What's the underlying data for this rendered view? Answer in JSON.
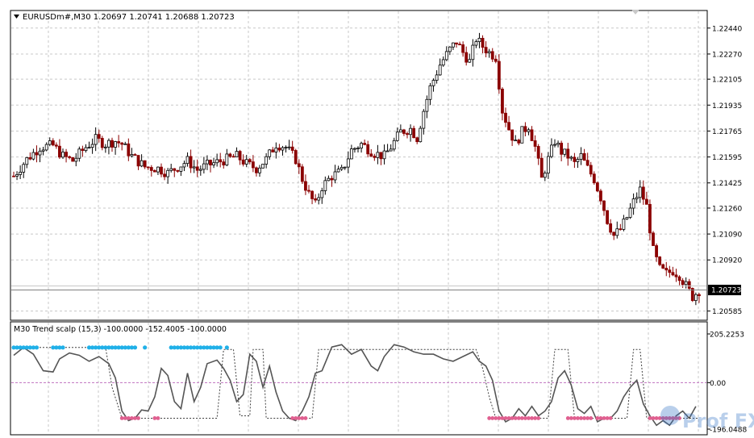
{
  "main_label": "EURUSDm#,M30  1.20697 1.20741 1.20688 1.20723",
  "indicator_label": "M30 Trend scalp (15,3) -100.0000 -152.4005 -100.0000",
  "watermark": "Prof FX",
  "colors": {
    "background": "#ffffff",
    "grid": "#c8c8c8",
    "bull_candle": "#000000",
    "bear_candle": "#8b0000",
    "price_line": "#000000",
    "osc_line": "#555555",
    "signal_line": "#404040",
    "zero_line": "#c070c0",
    "bull_dots": "#20b0e8",
    "bear_dots": "#e06090",
    "current_price_box": "#000000"
  },
  "chart_data": [
    {
      "type": "candlestick",
      "symbol": "EURUSDm#",
      "timeframe": "M30",
      "title": "EURUSDm#,M30  1.20697 1.20741 1.20688 1.20723",
      "ohlc_last": {
        "open": 1.20697,
        "high": 1.20741,
        "low": 1.20688,
        "close": 1.20723
      },
      "current_price": "1.20723",
      "y_ticks": [
        "1.22440",
        "1.22270",
        "1.22105",
        "1.21935",
        "1.21765",
        "1.21595",
        "1.21425",
        "1.21260",
        "1.21090",
        "1.20920",
        "1.20585"
      ],
      "ylim": [
        1.2053,
        1.2255
      ],
      "grid": true,
      "close_path": [
        [
          0,
          1.2147
        ],
        [
          4,
          1.2158
        ],
        [
          8,
          1.2166
        ],
        [
          12,
          1.2167
        ],
        [
          15,
          1.216
        ],
        [
          18,
          1.2157
        ],
        [
          22,
          1.2166
        ],
        [
          25,
          1.2171
        ],
        [
          28,
          1.2168
        ],
        [
          31,
          1.217
        ],
        [
          33,
          1.2168
        ],
        [
          36,
          1.216
        ],
        [
          40,
          1.2153
        ],
        [
          44,
          1.2152
        ],
        [
          47,
          1.2149
        ],
        [
          50,
          1.2153
        ],
        [
          53,
          1.2157
        ],
        [
          56,
          1.2151
        ],
        [
          59,
          1.2154
        ],
        [
          62,
          1.2156
        ],
        [
          65,
          1.2158
        ],
        [
          68,
          1.216
        ],
        [
          71,
          1.2155
        ],
        [
          74,
          1.2152
        ],
        [
          77,
          1.2158
        ],
        [
          80,
          1.2168
        ],
        [
          83,
          1.2166
        ],
        [
          86,
          1.2158
        ],
        [
          88,
          1.2145
        ],
        [
          90,
          1.2135
        ],
        [
          92,
          1.2128
        ],
        [
          94,
          1.214
        ],
        [
          97,
          1.2147
        ],
        [
          100,
          1.215
        ],
        [
          103,
          1.2164
        ],
        [
          106,
          1.2168
        ],
        [
          110,
          1.2162
        ],
        [
          113,
          1.216
        ],
        [
          115,
          1.2166
        ],
        [
          118,
          1.2176
        ],
        [
          121,
          1.2178
        ],
        [
          123,
          1.2172
        ],
        [
          125,
          1.219
        ],
        [
          127,
          1.2205
        ],
        [
          130,
          1.222
        ],
        [
          133,
          1.223
        ],
        [
          135,
          1.2235
        ],
        [
          137,
          1.2228
        ],
        [
          139,
          1.2222
        ],
        [
          141,
          1.2237
        ],
        [
          143,
          1.2232
        ],
        [
          145,
          1.2228
        ],
        [
          147,
          1.2225
        ],
        [
          149,
          1.219
        ],
        [
          151,
          1.2178
        ],
        [
          153,
          1.2168
        ],
        [
          155,
          1.2176
        ],
        [
          157,
          1.218
        ],
        [
          159,
          1.2166
        ],
        [
          161,
          1.2145
        ],
        [
          163,
          1.2158
        ],
        [
          165,
          1.217
        ],
        [
          167,
          1.2163
        ],
        [
          169,
          1.216
        ],
        [
          171,
          1.2155
        ],
        [
          173,
          1.216
        ],
        [
          175,
          1.2152
        ],
        [
          177,
          1.2145
        ],
        [
          179,
          1.2133
        ],
        [
          181,
          1.2118
        ],
        [
          183,
          1.2108
        ],
        [
          185,
          1.2112
        ],
        [
          187,
          1.212
        ],
        [
          189,
          1.213
        ],
        [
          191,
          1.2138
        ],
        [
          193,
          1.2127
        ],
        [
          195,
          1.2098
        ],
        [
          197,
          1.2086
        ],
        [
          199,
          1.2083
        ],
        [
          201,
          1.2085
        ],
        [
          203,
          1.2082
        ],
        [
          205,
          1.2075
        ],
        [
          207,
          1.2068
        ],
        [
          209,
          1.2072
        ]
      ]
    },
    {
      "type": "line",
      "title": "M30 Trend scalp (15,3) -100.0000 -152.4005 -100.0000",
      "y_ticks": [
        "205.2253",
        "0.00",
        "-196.0488"
      ],
      "ylim": [
        -196.0488,
        205.2253
      ],
      "grid": true,
      "series": [
        {
          "values": [
            [
              0,
              115
            ],
            [
              3,
              148
            ],
            [
              6,
              120
            ],
            [
              9,
              50
            ],
            [
              12,
              45
            ],
            [
              14,
              100
            ],
            [
              17,
              125
            ],
            [
              20,
              115
            ],
            [
              23,
              90
            ],
            [
              26,
              110
            ],
            [
              29,
              80
            ],
            [
              31,
              20
            ],
            [
              33,
              -120
            ],
            [
              35,
              -160
            ],
            [
              37,
              -150
            ],
            [
              39,
              -115
            ],
            [
              41,
              -120
            ],
            [
              43,
              -60
            ],
            [
              45,
              60
            ],
            [
              47,
              30
            ],
            [
              49,
              -80
            ],
            [
              51,
              -110
            ],
            [
              53,
              40
            ],
            [
              55,
              -80
            ],
            [
              57,
              -20
            ],
            [
              59,
              80
            ],
            [
              62,
              95
            ],
            [
              64,
              60
            ],
            [
              66,
              10
            ],
            [
              68,
              -80
            ],
            [
              70,
              -50
            ],
            [
              72,
              120
            ],
            [
              74,
              90
            ],
            [
              76,
              -20
            ],
            [
              78,
              70
            ],
            [
              80,
              -40
            ],
            [
              82,
              -120
            ],
            [
              84,
              -150
            ],
            [
              86,
              -160
            ],
            [
              88,
              -120
            ],
            [
              90,
              -60
            ],
            [
              92,
              40
            ],
            [
              94,
              50
            ],
            [
              97,
              150
            ],
            [
              100,
              160
            ],
            [
              103,
              120
            ],
            [
              106,
              140
            ],
            [
              109,
              70
            ],
            [
              111,
              50
            ],
            [
              113,
              110
            ],
            [
              116,
              160
            ],
            [
              119,
              150
            ],
            [
              122,
              130
            ],
            [
              125,
              120
            ],
            [
              128,
              120
            ],
            [
              131,
              100
            ],
            [
              134,
              90
            ],
            [
              137,
              110
            ],
            [
              140,
              130
            ],
            [
              142,
              90
            ],
            [
              144,
              70
            ],
            [
              146,
              10
            ],
            [
              148,
              -120
            ],
            [
              150,
              -165
            ],
            [
              152,
              -150
            ],
            [
              154,
              -110
            ],
            [
              156,
              -140
            ],
            [
              158,
              -100
            ],
            [
              160,
              -140
            ],
            [
              162,
              -120
            ],
            [
              164,
              -80
            ],
            [
              166,
              20
            ],
            [
              168,
              50
            ],
            [
              170,
              -10
            ],
            [
              172,
              -110
            ],
            [
              174,
              -130
            ],
            [
              176,
              -100
            ],
            [
              178,
              -165
            ],
            [
              180,
              -150
            ],
            [
              182,
              -150
            ],
            [
              184,
              -120
            ],
            [
              186,
              -60
            ],
            [
              188,
              -20
            ],
            [
              190,
              10
            ],
            [
              192,
              -90
            ],
            [
              194,
              -140
            ],
            [
              196,
              -180
            ],
            [
              198,
              -160
            ],
            [
              200,
              -180
            ],
            [
              202,
              -140
            ],
            [
              204,
              -120
            ],
            [
              206,
              -150
            ],
            [
              208,
              -100
            ]
          ]
        },
        {
          "values": [
            [
              0,
              148
            ],
            [
              28,
              148
            ],
            [
              30,
              -20
            ],
            [
              33,
              -150
            ],
            [
              62,
              -150
            ],
            [
              64,
              140
            ],
            [
              67,
              140
            ],
            [
              69,
              -140
            ],
            [
              72,
              -140
            ],
            [
              73,
              140
            ],
            [
              76,
              140
            ],
            [
              77,
              -150
            ],
            [
              91,
              -150
            ],
            [
              93,
              140
            ],
            [
              141,
              140
            ],
            [
              143,
              60
            ],
            [
              145,
              -60
            ],
            [
              147,
              -150
            ],
            [
              163,
              -150
            ],
            [
              165,
              140
            ],
            [
              169,
              140
            ],
            [
              171,
              -150
            ],
            [
              187,
              -150
            ],
            [
              189,
              140
            ],
            [
              191,
              140
            ],
            [
              193,
              -150
            ],
            [
              209,
              -150
            ]
          ]
        }
      ],
      "bull_markers": [
        [
          0,
          7
        ],
        [
          12,
          15
        ],
        [
          23,
          37
        ],
        [
          40,
          40
        ],
        [
          48,
          63
        ],
        [
          65,
          65
        ]
      ],
      "bear_markers": [
        [
          33,
          38
        ],
        [
          43,
          44
        ],
        [
          85,
          89
        ],
        [
          145,
          160
        ],
        [
          169,
          176
        ],
        [
          178,
          182
        ],
        [
          194,
          203
        ]
      ]
    }
  ]
}
